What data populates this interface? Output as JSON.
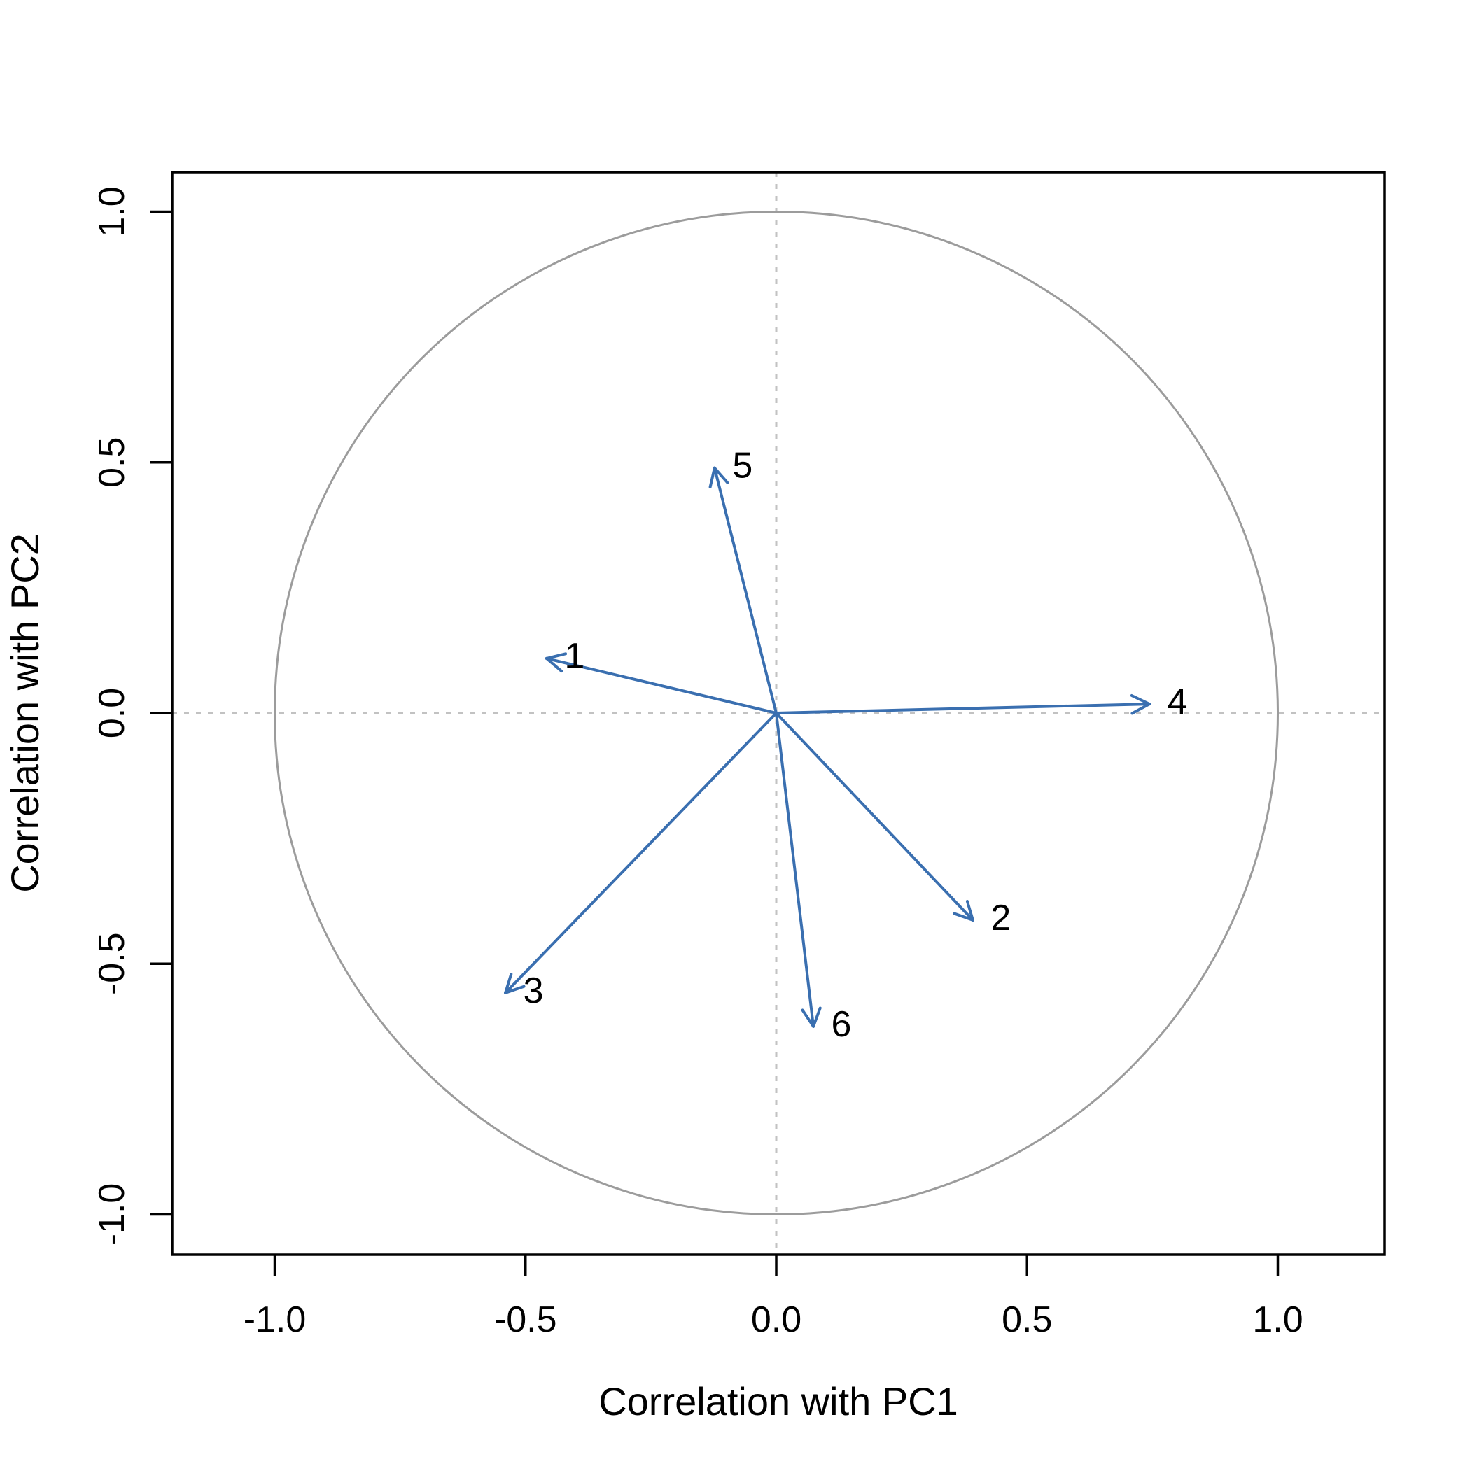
{
  "chart_data": {
    "type": "scatter",
    "subtype": "pca-correlation-circle",
    "title": "",
    "xlabel": "Correlation with PC1",
    "ylabel": "Correlation with PC2",
    "xlim": [
      -1.2,
      1.21
    ],
    "ylim": [
      -1.08,
      1.08
    ],
    "grid": false,
    "legend_position": "none",
    "x_axis": {
      "tick_values": [
        -1.0,
        -0.5,
        0.0,
        0.5,
        1.0
      ],
      "tick_labels": [
        "-1.0",
        "-0.5",
        "0.0",
        "0.5",
        "1.0"
      ]
    },
    "y_axis": {
      "tick_values": [
        -1.0,
        -0.5,
        0.0,
        0.5,
        1.0
      ],
      "tick_labels": [
        "-1.0",
        "-0.5",
        "0.0",
        "0.5",
        "1.0"
      ]
    },
    "unit_circle": {
      "center_x": 0,
      "center_y": 0,
      "radius": 1.0
    },
    "zero_reference_lines": {
      "x": 0.0,
      "y": 0.0,
      "style": "dotted"
    },
    "points": [
      {
        "label": "1",
        "x": -0.458,
        "y": 0.109
      },
      {
        "label": "2",
        "x": 0.392,
        "y": -0.413
      },
      {
        "label": "3",
        "x": -0.54,
        "y": -0.558
      },
      {
        "label": "4",
        "x": 0.744,
        "y": 0.018
      },
      {
        "label": "5",
        "x": -0.123,
        "y": 0.489
      },
      {
        "label": "6",
        "x": 0.074,
        "y": -0.625
      }
    ]
  },
  "colors": {
    "arrow": "#3a6fb0",
    "circle": "#9c9c9c",
    "dashed_reference": "#c2c2c2",
    "axis": "#000000",
    "text": "#000000",
    "background": "#ffffff"
  }
}
